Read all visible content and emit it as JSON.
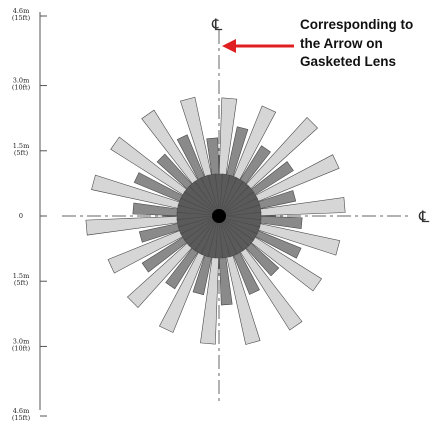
{
  "diagram": {
    "y_axis_ticks": [
      {
        "value_m": 4.6,
        "label_top": "4.6m",
        "label_bottom": "(15ft)"
      },
      {
        "value_m": 3.0,
        "label_top": "3.0m",
        "label_bottom": "(10ft)"
      },
      {
        "value_m": 1.5,
        "label_top": "1.5m",
        "label_bottom": "(5ft)"
      },
      {
        "value_m": 0,
        "label_top": "0",
        "label_bottom": ""
      },
      {
        "value_m": -1.5,
        "label_top": "1.5m",
        "label_bottom": "(5ft)"
      },
      {
        "value_m": -3.0,
        "label_top": "3.0m",
        "label_bottom": "(10ft)"
      },
      {
        "value_m": -4.6,
        "label_top": "4.6m",
        "label_bottom": "(15ft)"
      }
    ],
    "centerline_symbol": "℄",
    "annotation": {
      "lines": [
        "Corresponding to",
        "the Arrow on",
        "Gasketed Lens"
      ],
      "arrow_color": "#e02020"
    },
    "spray_colors": {
      "light": "#d6d6d6",
      "dark": "#8a8a8a",
      "outline": "#4a4a4a"
    }
  }
}
